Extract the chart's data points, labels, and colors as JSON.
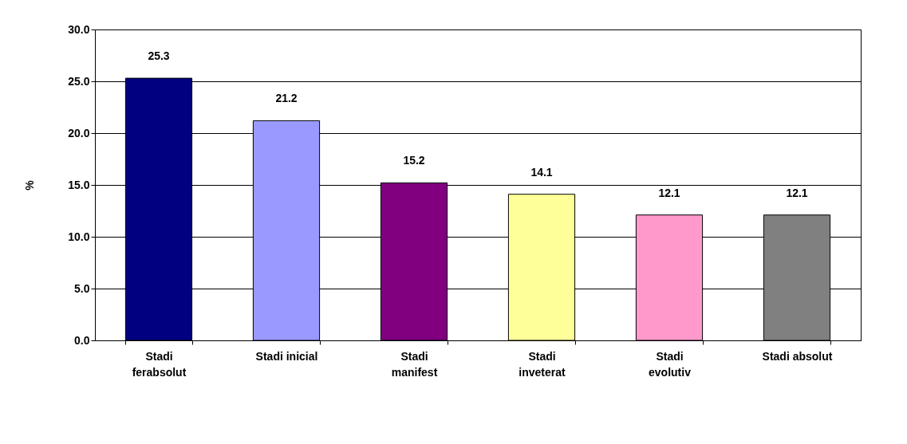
{
  "chart_data": {
    "type": "bar",
    "ylabel": "%",
    "categories": [
      "Stadi ferabsolut",
      "Stadi inicial",
      "Stadi manifest",
      "Stadi inveterat",
      "Stadi evolutiv",
      "Stadi absolut"
    ],
    "values": [
      25.3,
      21.2,
      15.2,
      14.1,
      12.1,
      12.1
    ],
    "colors": [
      "#000080",
      "#9999ff",
      "#800080",
      "#ffff99",
      "#ff99cc",
      "#808080"
    ],
    "ylim": [
      0,
      30
    ],
    "yticks": [
      {
        "value": 0,
        "label": "0.0"
      },
      {
        "value": 5,
        "label": "5.0"
      },
      {
        "value": 10,
        "label": "10.0"
      },
      {
        "value": 15,
        "label": "15.0"
      },
      {
        "value": 20,
        "label": "20.0"
      },
      {
        "value": 25,
        "label": "25.0"
      },
      {
        "value": 30,
        "label": "30.0"
      }
    ],
    "grid": "y",
    "data_labels": true,
    "legend": false
  }
}
